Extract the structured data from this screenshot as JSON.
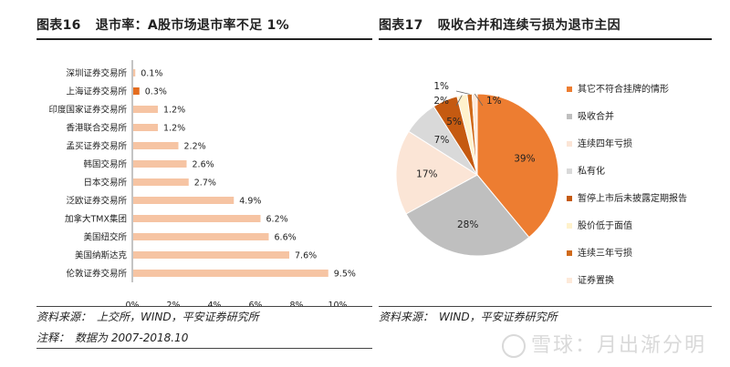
{
  "left": {
    "fig_num": "图表16",
    "fig_title": "退市率：A股市场退市率不足 1%",
    "source_label": "资料来源：",
    "source_text": "上交所，WIND，平安证券研究所",
    "note_label": "注释：",
    "note_text": "数据为 2007-2018.10"
  },
  "right": {
    "fig_num": "图表17",
    "fig_title": "吸收合并和连续亏损为退市主因",
    "source_label": "资料来源：",
    "source_text": "WIND，平安证券研究所"
  },
  "watermark": "雪球：月出渐分明",
  "colors": {
    "bar": "#f6c4a3",
    "bar_highlight": "#e46c1e"
  },
  "chart_data": [
    {
      "type": "bar",
      "orientation": "horizontal",
      "categories": [
        "深圳证券交易所",
        "上海证券交易所",
        "印度国家证券交易所",
        "香港联合交易所",
        "孟买证券交易所",
        "韩国交易所",
        "日本交易所",
        "泛欧证券交易所",
        "加拿大TMX集团",
        "美国纽交所",
        "美国纳斯达克",
        "伦敦证券交易所"
      ],
      "values": [
        0.1,
        0.3,
        1.2,
        1.2,
        2.2,
        2.6,
        2.7,
        4.9,
        6.2,
        6.6,
        7.6,
        9.5
      ],
      "value_labels": [
        "0.1%",
        "0.3%",
        "1.2%",
        "1.2%",
        "2.2%",
        "2.6%",
        "2.7%",
        "4.9%",
        "6.2%",
        "6.6%",
        "7.6%",
        "9.5%"
      ],
      "highlight_index": 1,
      "xlim": [
        0,
        10
      ],
      "xticks": [
        "0%",
        "2%",
        "4%",
        "6%",
        "8%",
        "10%"
      ],
      "unit": "%",
      "grid": false
    },
    {
      "type": "pie",
      "labels": [
        "其它不符合挂牌的情形",
        "吸收合并",
        "连续四年亏损",
        "私有化",
        "暂停上市后未披露定期报告",
        "股价低于面值",
        "连续三年亏损",
        "证券置换"
      ],
      "values": [
        39,
        28,
        17,
        7,
        5,
        2,
        1,
        1
      ],
      "value_labels": [
        "39%",
        "28%",
        "17%",
        "7%",
        "5%",
        "2%",
        "1%",
        "1%"
      ],
      "colors": [
        "#ed7d31",
        "#bfbfbf",
        "#fbe5d6",
        "#d9d9d9",
        "#c55a11",
        "#fff2cc",
        "#d06a1a",
        "#fde9d9"
      ],
      "legend": "right"
    }
  ]
}
